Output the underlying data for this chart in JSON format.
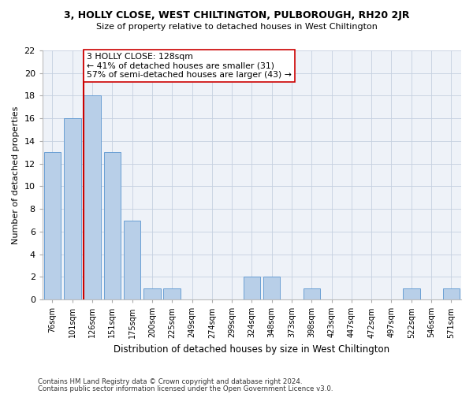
{
  "title1": "3, HOLLY CLOSE, WEST CHILTINGTON, PULBOROUGH, RH20 2JR",
  "title2": "Size of property relative to detached houses in West Chiltington",
  "xlabel": "Distribution of detached houses by size in West Chiltington",
  "ylabel": "Number of detached properties",
  "categories": [
    "76sqm",
    "101sqm",
    "126sqm",
    "151sqm",
    "175sqm",
    "200sqm",
    "225sqm",
    "249sqm",
    "274sqm",
    "299sqm",
    "324sqm",
    "348sqm",
    "373sqm",
    "398sqm",
    "423sqm",
    "447sqm",
    "472sqm",
    "497sqm",
    "522sqm",
    "546sqm",
    "571sqm"
  ],
  "values": [
    13,
    16,
    18,
    13,
    7,
    1,
    1,
    0,
    0,
    0,
    2,
    2,
    0,
    1,
    0,
    0,
    0,
    0,
    1,
    0,
    1
  ],
  "bar_color": "#b8cfe8",
  "bar_edge_color": "#6a9fd4",
  "vline_index": 2,
  "vline_color": "#cc0000",
  "annotation_line1": "3 HOLLY CLOSE: 128sqm",
  "annotation_line2": "← 41% of detached houses are smaller (31)",
  "annotation_line3": "57% of semi-detached houses are larger (43) →",
  "annotation_box_color": "#ffffff",
  "annotation_box_edge": "#cc0000",
  "ylim": [
    0,
    22
  ],
  "yticks": [
    0,
    2,
    4,
    6,
    8,
    10,
    12,
    14,
    16,
    18,
    20,
    22
  ],
  "footnote1": "Contains HM Land Registry data © Crown copyright and database right 2024.",
  "footnote2": "Contains public sector information licensed under the Open Government Licence v3.0.",
  "bg_color": "#eef2f8",
  "grid_color": "#c5d0e0"
}
